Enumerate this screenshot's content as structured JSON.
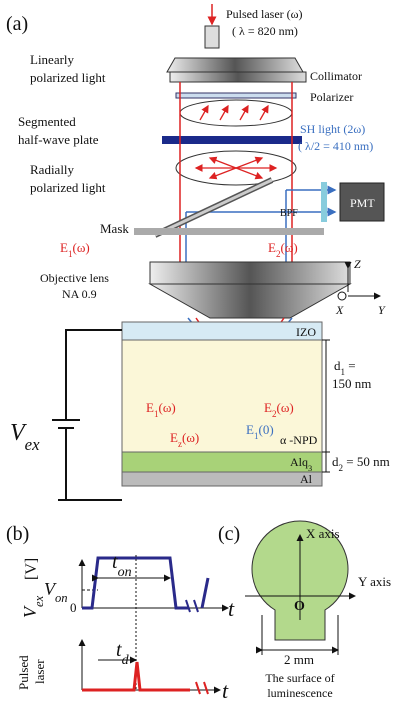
{
  "panel_a": {
    "label": "(a)",
    "laser": {
      "line1": "Pulsed laser (ω)",
      "line2": "( λ = 820 nm)"
    },
    "linear": [
      "Linearly",
      "polarized light"
    ],
    "collimator": "Collimator",
    "polarizer": "Polarizer",
    "halfwave": [
      "Segmented",
      "half-wave plate"
    ],
    "sh_light": [
      "SH light (2ω)",
      "( λ/2 = 410 nm)"
    ],
    "radial": [
      "Radially",
      "polarized light"
    ],
    "bpf": "BPF",
    "pmt": "PMT",
    "mask": "Mask",
    "e1_top": {
      "base": "E",
      "sub": "1",
      "rest": "(ω)"
    },
    "e2_top": {
      "base": "E",
      "sub": "2",
      "rest": "(ω)"
    },
    "objective": [
      "Objective lens",
      "NA 0.9"
    ],
    "axes": {
      "z": "Z",
      "x": "X",
      "y": "Y"
    },
    "izo": "IZO",
    "d1": {
      "base": "d",
      "sub": "1",
      "rest": " =",
      "line2": "150 nm"
    },
    "e1": {
      "base": "E",
      "sub": "1",
      "rest": "(ω)"
    },
    "e2": {
      "base": "E",
      "sub": "2",
      "rest": "(ω)"
    },
    "ez": {
      "base": "E",
      "sub": "z",
      "rest": "(ω)"
    },
    "e10": {
      "base": "E",
      "sub": "1",
      "rest": "(0)"
    },
    "vex": {
      "base": "V",
      "sub": "ex"
    },
    "npd": "α -NPD",
    "alq3": {
      "base": "Alq",
      "sub": "3"
    },
    "d2": {
      "base": "d",
      "sub": "2",
      "rest": " = 50 nm"
    },
    "al": "Al"
  },
  "panel_b": {
    "label": "(b)",
    "ton": {
      "base": "t",
      "sub": "on"
    },
    "von": {
      "base": "V",
      "sub": "on"
    },
    "unit": "[V]",
    "vex": {
      "base": "V",
      "sub": "ex"
    },
    "zero": "0",
    "t": "t",
    "td": {
      "base": "t",
      "sub": "d"
    },
    "laser": [
      "Pulsed",
      "laser"
    ],
    "t2": "t"
  },
  "panel_c": {
    "label": "(c)",
    "x_axis": "X axis",
    "y_axis": "Y axis",
    "origin": "O",
    "size": "2 mm",
    "caption": [
      "The surface of",
      "luminescence"
    ]
  }
}
